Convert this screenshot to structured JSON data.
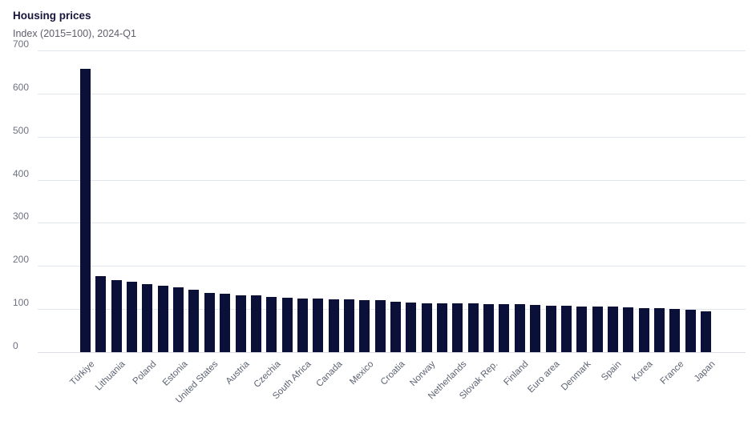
{
  "header": {
    "title": "Housing prices",
    "subtitle": "Index (2015=100), 2024-Q1"
  },
  "colors": {
    "bar": "#0b1039",
    "gridline": "#e2e6ee",
    "title_text": "#16163c",
    "subtitle_text": "#5d5d6c",
    "tick_text": "#6e7280",
    "category_text": "#5c6372",
    "background": "#ffffff"
  },
  "chart_data": {
    "type": "bar",
    "title": "Housing prices",
    "subtitle": "Index (2015=100), 2024-Q1",
    "xlabel": "",
    "ylabel": "",
    "ylim": [
      0,
      700
    ],
    "yticks": [
      0,
      100,
      200,
      300,
      400,
      500,
      600,
      700
    ],
    "grid": "horizontal",
    "legend": "none",
    "note": "every second bar is unlabeled in the source chart; empty strings mark unlabeled bars",
    "categories": [
      "Türkiye",
      "",
      "Lithuania",
      "",
      "Poland",
      "",
      "Estonia",
      "",
      "United States",
      "",
      "Austria",
      "",
      "Czechia",
      "",
      "South Africa",
      "",
      "Canada",
      "",
      "Mexico",
      "",
      "Croatia",
      "",
      "Norway",
      "",
      "Netherlands",
      "",
      "Slovak Rep.",
      "",
      "Finland",
      "",
      "Euro area",
      "",
      "Denmark",
      "",
      "Spain",
      "",
      "Korea",
      "",
      "France",
      "",
      "Japan"
    ],
    "values": [
      657,
      177,
      168,
      163,
      157,
      155,
      151,
      144,
      137,
      135,
      132,
      131,
      129,
      127,
      125,
      124,
      123,
      122,
      121,
      120,
      117,
      116,
      114,
      114,
      113,
      113,
      112,
      112,
      111,
      110,
      108,
      107,
      106,
      106,
      105,
      104,
      103,
      102,
      101,
      98,
      95
    ]
  }
}
